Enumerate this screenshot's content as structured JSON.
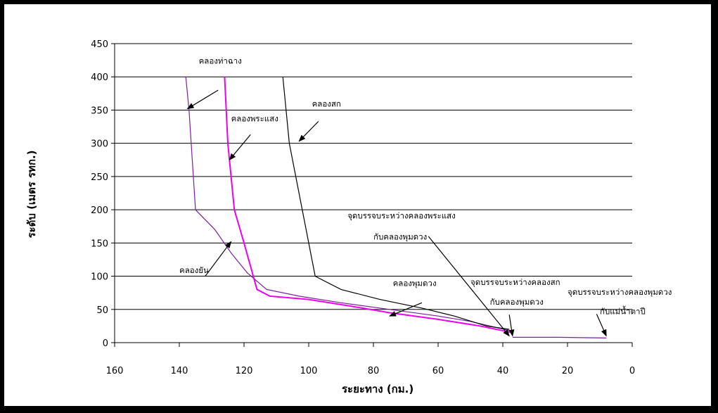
{
  "chart_data": {
    "type": "line",
    "xlabel": "ระยะทาง  (กม.)",
    "ylabel": "ระดับ  (เมตร  รทก.)",
    "xlim": [
      160,
      0
    ],
    "ylim": [
      0,
      450
    ],
    "x_ticks": [
      "160",
      "140",
      "120",
      "100",
      "80",
      "60",
      "40",
      "20",
      "0"
    ],
    "y_ticks": [
      "0",
      "50",
      "100",
      "150",
      "200",
      "250",
      "300",
      "350",
      "400",
      "450"
    ],
    "grid": "horizontal",
    "series": [
      {
        "name": "คลองท่าฉาง",
        "color": "#7a1f9e",
        "points": [
          [
            138,
            400
          ],
          [
            137,
            350
          ],
          [
            135,
            200
          ],
          [
            129,
            170
          ],
          [
            124,
            135
          ],
          [
            119,
            105
          ],
          [
            113,
            80
          ],
          [
            103,
            70
          ],
          [
            90,
            60
          ],
          [
            75,
            50
          ],
          [
            60,
            40
          ],
          [
            50,
            32
          ],
          [
            37,
            17
          ]
        ]
      },
      {
        "name": "คลองพระแสง",
        "color": "#ee00ee",
        "points": [
          [
            126,
            400
          ],
          [
            125,
            300
          ],
          [
            123,
            200
          ],
          [
            120,
            150
          ],
          [
            116,
            80
          ],
          [
            112,
            70
          ],
          [
            100,
            65
          ],
          [
            87,
            55
          ],
          [
            75,
            45
          ],
          [
            60,
            35
          ],
          [
            47,
            25
          ],
          [
            37,
            15
          ]
        ]
      },
      {
        "name": "คลองสก",
        "color": "#000000",
        "points": [
          [
            108,
            400
          ],
          [
            106,
            300
          ],
          [
            102,
            200
          ],
          [
            98,
            100
          ],
          [
            90,
            80
          ],
          [
            78,
            65
          ],
          [
            65,
            52
          ],
          [
            55,
            40
          ],
          [
            45,
            25
          ],
          [
            38,
            20
          ]
        ]
      },
      {
        "name": "คลองพุมดวง",
        "color": "#7a1f9e",
        "points": [
          [
            37,
            8
          ],
          [
            23,
            8
          ],
          [
            8,
            7
          ]
        ]
      }
    ],
    "annotations": {
      "thachang": "คลองท่าฉาง",
      "phrasaeng": "คลองพระแสง",
      "sok": "คลองสก",
      "yan": "คลองยัน",
      "phumduang": "คลองพุมดวง",
      "junction1_line1": "จุดบรรจบระหว่างคลองพระแสง",
      "junction1_line2": "กับคลองพุมดวง",
      "junction2_line1": "จุดบรรจบระหว่างคลองสก",
      "junction2_line2": "กับคลองพุมดวง",
      "junction3_line1": "จุดบรรจบระหว่างคลองพุมดวง",
      "junction3_line2": "กับแม่น้ำตาปี"
    }
  }
}
